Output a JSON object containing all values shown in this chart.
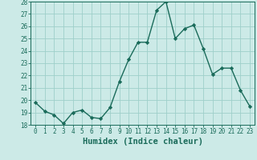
{
  "x": [
    0,
    1,
    2,
    3,
    4,
    5,
    6,
    7,
    8,
    9,
    10,
    11,
    12,
    13,
    14,
    15,
    16,
    17,
    18,
    19,
    20,
    21,
    22,
    23
  ],
  "y": [
    19.8,
    19.1,
    18.8,
    18.1,
    19.0,
    19.2,
    18.6,
    18.5,
    19.4,
    21.5,
    23.3,
    24.7,
    24.7,
    27.3,
    28.0,
    25.0,
    25.8,
    26.1,
    24.2,
    22.1,
    22.6,
    22.6,
    20.8,
    19.5
  ],
  "xlabel": "Humidex (Indice chaleur)",
  "ylabel": "",
  "ylim": [
    18,
    28
  ],
  "xlim": [
    -0.5,
    23.5
  ],
  "yticks": [
    18,
    19,
    20,
    21,
    22,
    23,
    24,
    25,
    26,
    27,
    28
  ],
  "xticks": [
    0,
    1,
    2,
    3,
    4,
    5,
    6,
    7,
    8,
    9,
    10,
    11,
    12,
    13,
    14,
    15,
    16,
    17,
    18,
    19,
    20,
    21,
    22,
    23
  ],
  "line_color": "#1a6b5a",
  "marker": "D",
  "marker_size": 2.2,
  "bg_color": "#cceae7",
  "grid_color": "#9ecfca",
  "tick_color": "#1a6b5a",
  "label_color": "#1a6b5a",
  "tick_fontsize": 5.5,
  "xlabel_fontsize": 7.5
}
